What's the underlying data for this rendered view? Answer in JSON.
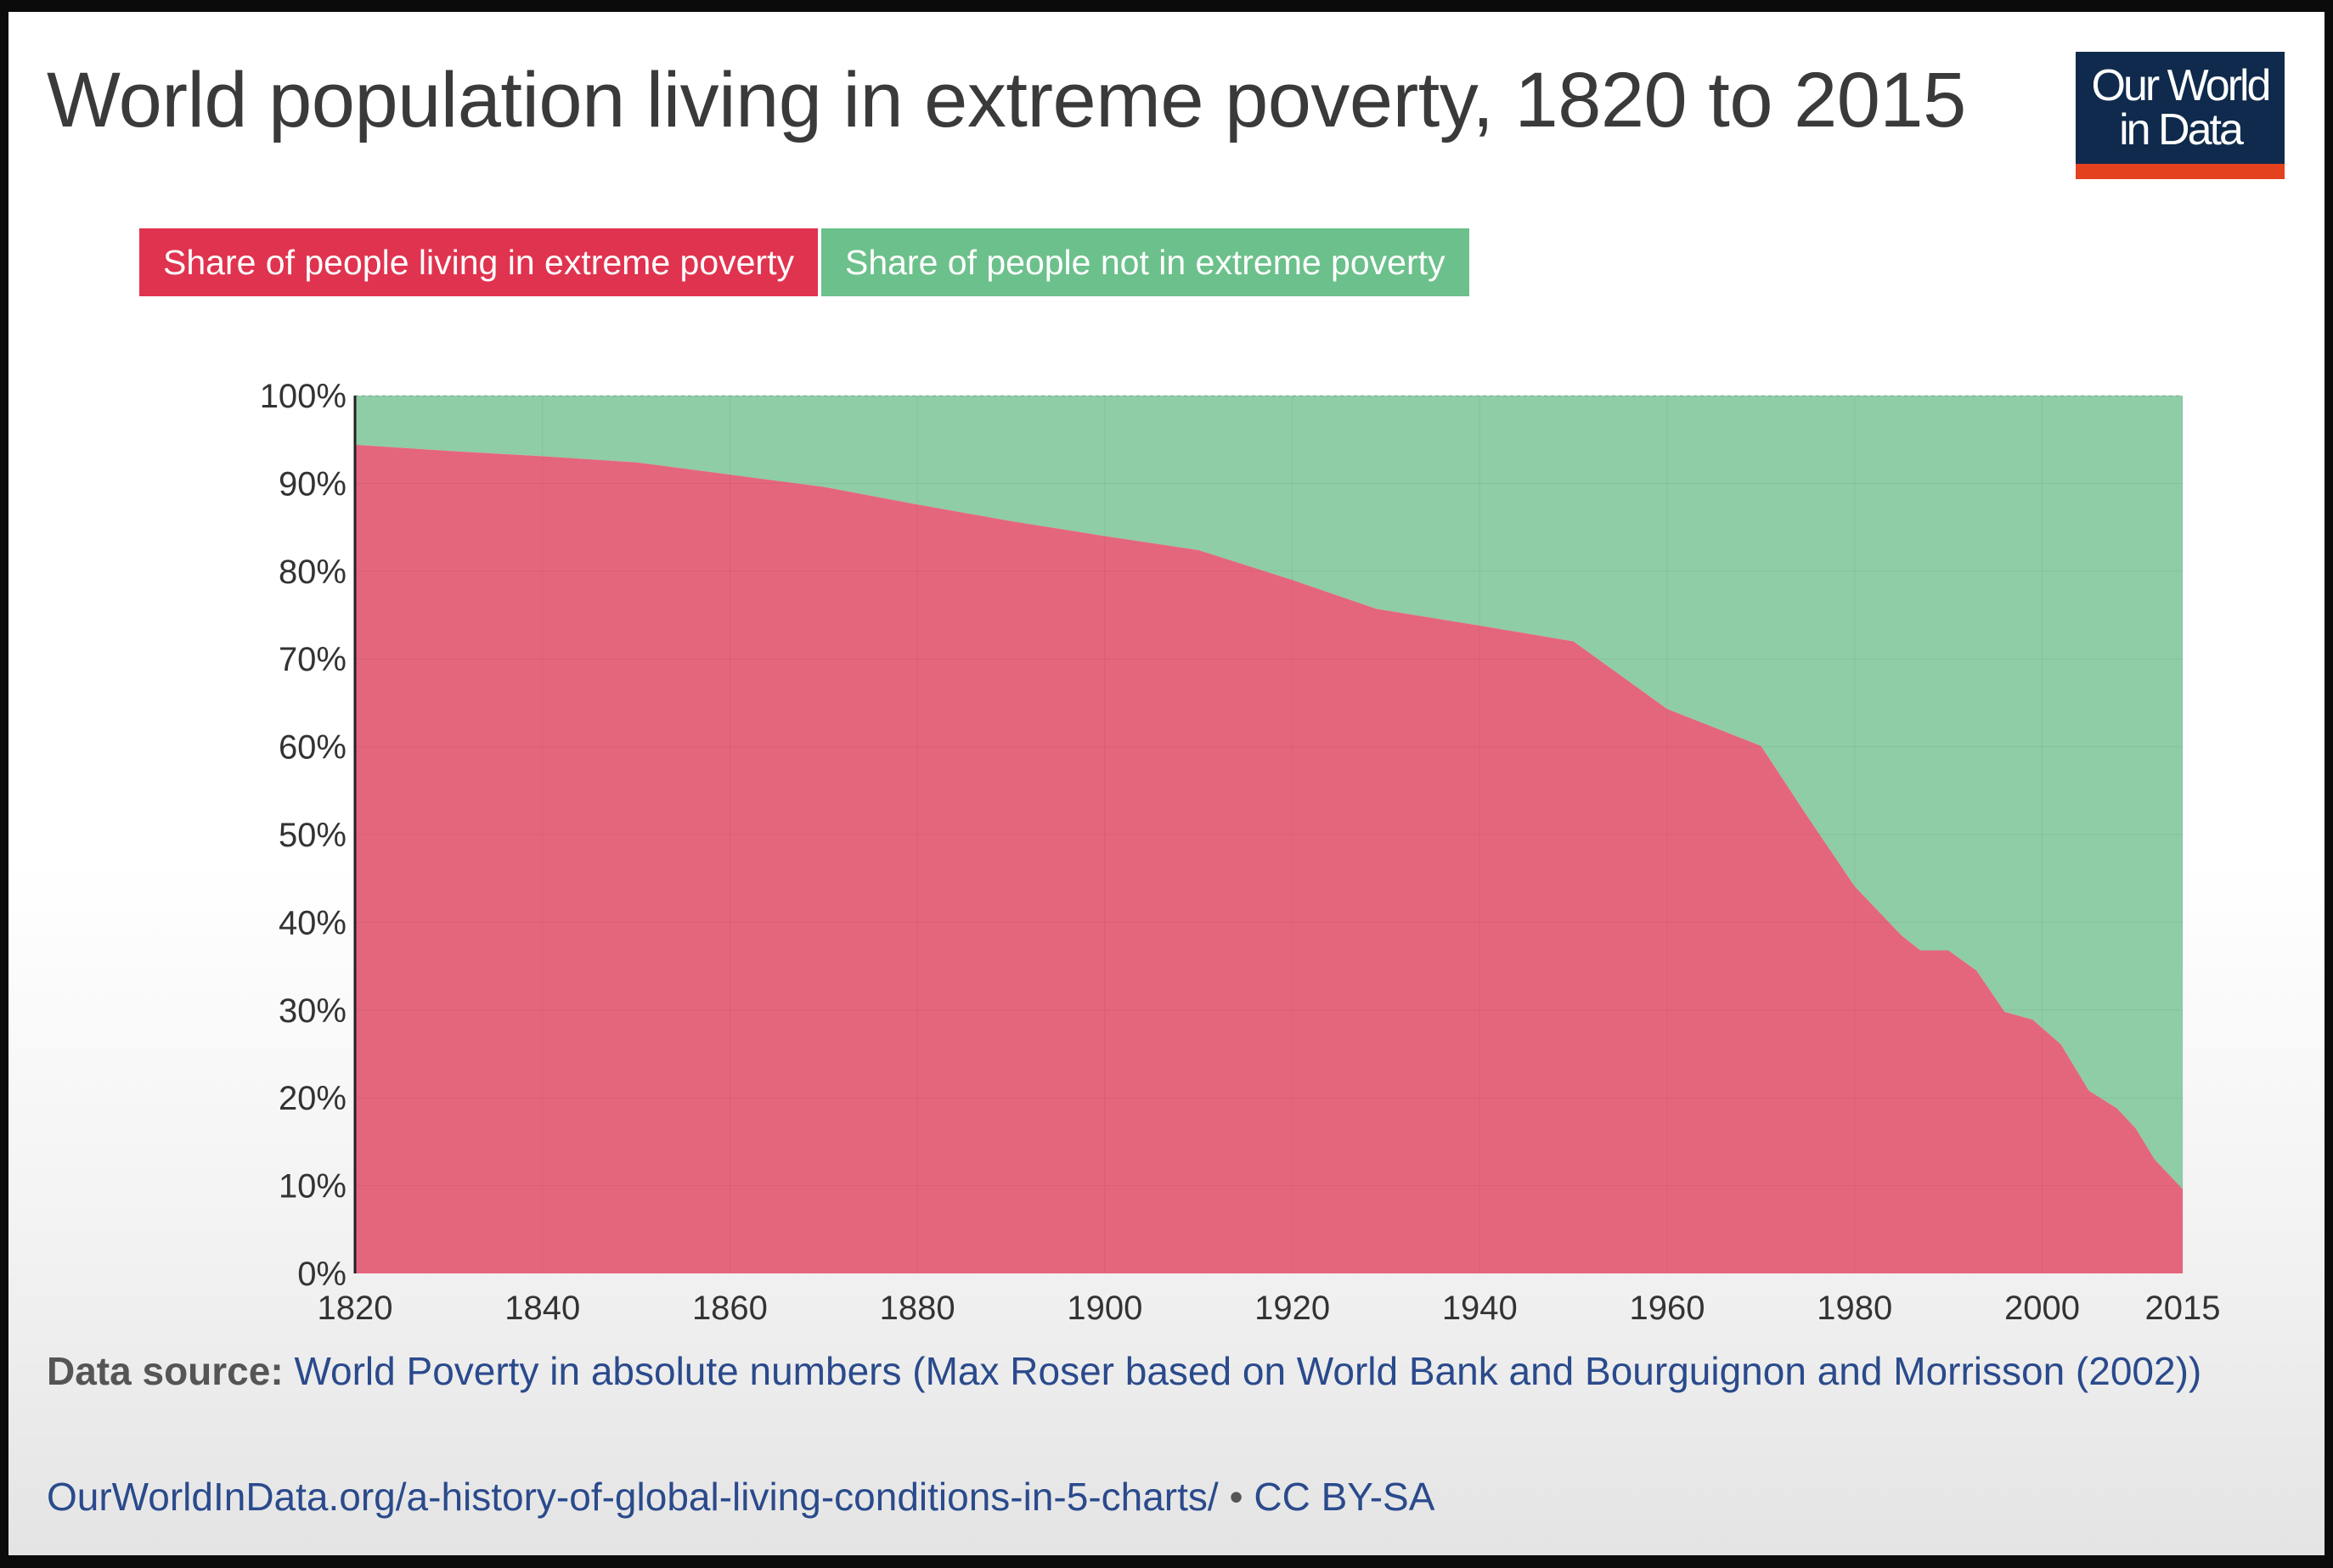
{
  "header": {
    "title": "World population living in extreme poverty, 1820 to 2015",
    "logo_line1": "Our World",
    "logo_line2": "in Data"
  },
  "footer": {
    "source_label": "Data source:",
    "source_text": "World Poverty in absolute numbers (Max Roser based on World Bank and Bourguignon and Morrisson (2002))",
    "url": "OurWorldInData.org/a-history-of-global-living-conditions-in-5-charts/",
    "separator": "•",
    "license": "CC BY-SA"
  },
  "colors": {
    "poverty": "#e4667d",
    "not_poverty": "#8ecda6",
    "legend_poverty": "#e0334f",
    "legend_not_poverty": "#6cc08b"
  },
  "chart_data": {
    "type": "area",
    "stacked": true,
    "title": "World population living in extreme poverty, 1820 to 2015",
    "xlabel": "",
    "ylabel": "",
    "xlim": [
      1820,
      2015
    ],
    "ylim": [
      0,
      100
    ],
    "x_ticks": [
      "1820",
      "1840",
      "1860",
      "1880",
      "1900",
      "1920",
      "1940",
      "1960",
      "1980",
      "2000",
      "2015"
    ],
    "y_ticks": [
      "0%",
      "10%",
      "20%",
      "30%",
      "40%",
      "50%",
      "60%",
      "70%",
      "80%",
      "90%",
      "100%"
    ],
    "legend": [
      "Share of people living in extreme poverty",
      "Share of people not in extreme poverty"
    ],
    "x": [
      1820,
      1830,
      1840,
      1850,
      1860,
      1870,
      1880,
      1890,
      1900,
      1910,
      1920,
      1929,
      1940,
      1950,
      1960,
      1970,
      1975,
      1980,
      1985,
      1987,
      1990,
      1993,
      1996,
      1999,
      2002,
      2005,
      2008,
      2010,
      2012,
      2015
    ],
    "series": [
      {
        "name": "Share of people living in extreme poverty",
        "values": [
          94.4,
          93.7,
          93.1,
          92.4,
          91.0,
          89.6,
          87.6,
          85.7,
          84.0,
          82.4,
          79.0,
          75.7,
          73.8,
          72.0,
          64.3,
          60.1,
          52.0,
          44.1,
          38.5,
          36.8,
          36.8,
          34.5,
          29.8,
          28.9,
          26.1,
          20.8,
          18.8,
          16.5,
          13.0,
          9.6
        ]
      },
      {
        "name": "Share of people not in extreme poverty",
        "values": [
          5.6,
          6.3,
          6.9,
          7.6,
          9.0,
          10.4,
          12.4,
          14.3,
          16.0,
          17.6,
          21.0,
          24.3,
          26.2,
          28.0,
          35.7,
          39.9,
          48.0,
          55.9,
          61.5,
          63.2,
          63.2,
          65.5,
          70.2,
          71.1,
          73.9,
          79.2,
          81.2,
          83.5,
          87.0,
          90.4
        ]
      }
    ]
  }
}
